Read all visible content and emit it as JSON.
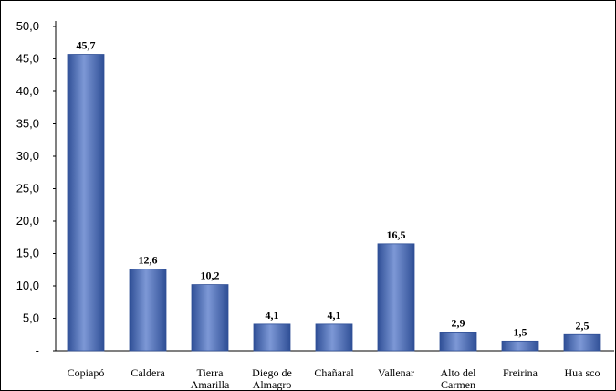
{
  "chart_data": {
    "type": "bar",
    "categories": [
      "Copiapó",
      "Caldera",
      "Tierra Amarilla",
      "Diego de Almagro",
      "Chañaral",
      "Vallenar",
      "Alto del Carmen",
      "Freirina",
      "Huasco"
    ],
    "category_lines": [
      [
        "Copiapó"
      ],
      [
        "Caldera"
      ],
      [
        "Tierra",
        "Amarilla"
      ],
      [
        "Diego de",
        "Almagro"
      ],
      [
        "Chañaral"
      ],
      [
        "Vallenar"
      ],
      [
        "Alto del",
        "Carmen"
      ],
      [
        "Freirina"
      ],
      [
        "Hua sco"
      ]
    ],
    "values": [
      45.7,
      12.6,
      10.2,
      4.1,
      4.1,
      16.5,
      2.9,
      1.5,
      2.5
    ],
    "data_labels": [
      "45,7",
      "12,6",
      "10,2",
      "4,1",
      "4,1",
      "16,5",
      "2,9",
      "1,5",
      "2,5"
    ],
    "y_ticks": [
      0,
      5,
      10,
      15,
      20,
      25,
      30,
      35,
      40,
      45,
      50
    ],
    "y_tick_labels": [
      "-",
      "5,0",
      "10,0",
      "15,0",
      "20,0",
      "25,0",
      "30,0",
      "35,0",
      "40,0",
      "45,0",
      "50,0"
    ],
    "ylim": [
      0,
      50
    ],
    "title": "",
    "xlabel": "",
    "ylabel": "",
    "grid": false,
    "legend": "none",
    "bar_color": "#4a6cb8",
    "bar_color_dark": "#2f4f96",
    "bar_color_light": "#7d98d6"
  }
}
